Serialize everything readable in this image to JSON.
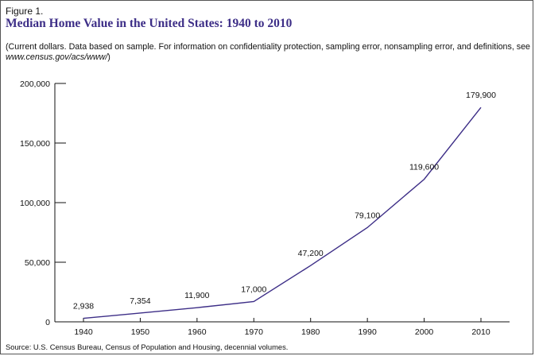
{
  "figure_label": "Figure 1.",
  "header": {
    "title": "Median Home Value in the United States: 1940 to 2010",
    "subtitle": "(Current dollars. Data based on sample. For information on confidentiality protection, sampling error, nonsampling error, and definitions, see ",
    "subtitle_url": "www.census.gov/acs/www/",
    "subtitle_end": ")"
  },
  "source": "Source: U.S. Census Bureau, Census of Population and Housing, decennial volumes.",
  "colors": {
    "title": "#3d2e87",
    "line": "#3d2e87",
    "axis": "#111111"
  },
  "chart_data": {
    "type": "line",
    "title": "Median Home Value in the United States: 1940 to 2010",
    "xlabel": "",
    "ylabel": "",
    "x": [
      1940,
      1950,
      1960,
      1970,
      1980,
      1990,
      2000,
      2010
    ],
    "series": [
      {
        "values": [
          2938,
          7354,
          11900,
          17000,
          47200,
          79100,
          119600,
          179900
        ]
      }
    ],
    "data_labels": [
      "2,938",
      "7,354",
      "11,900",
      "17,000",
      "47,200",
      "79,100",
      "119,600",
      "179,900"
    ],
    "x_ticks": [
      "1940",
      "1950",
      "1960",
      "1970",
      "1980",
      "1990",
      "2000",
      "2010"
    ],
    "y_ticks": [
      {
        "value": 0,
        "label": "0"
      },
      {
        "value": 50000,
        "label": "50,000"
      },
      {
        "value": 100000,
        "label": "100,000"
      },
      {
        "value": 150000,
        "label": "150,000"
      },
      {
        "value": 200000,
        "label": "200,000"
      }
    ],
    "xlim": [
      1940,
      2010
    ],
    "ylim": [
      0,
      200000
    ],
    "grid": false,
    "legend": "none"
  }
}
